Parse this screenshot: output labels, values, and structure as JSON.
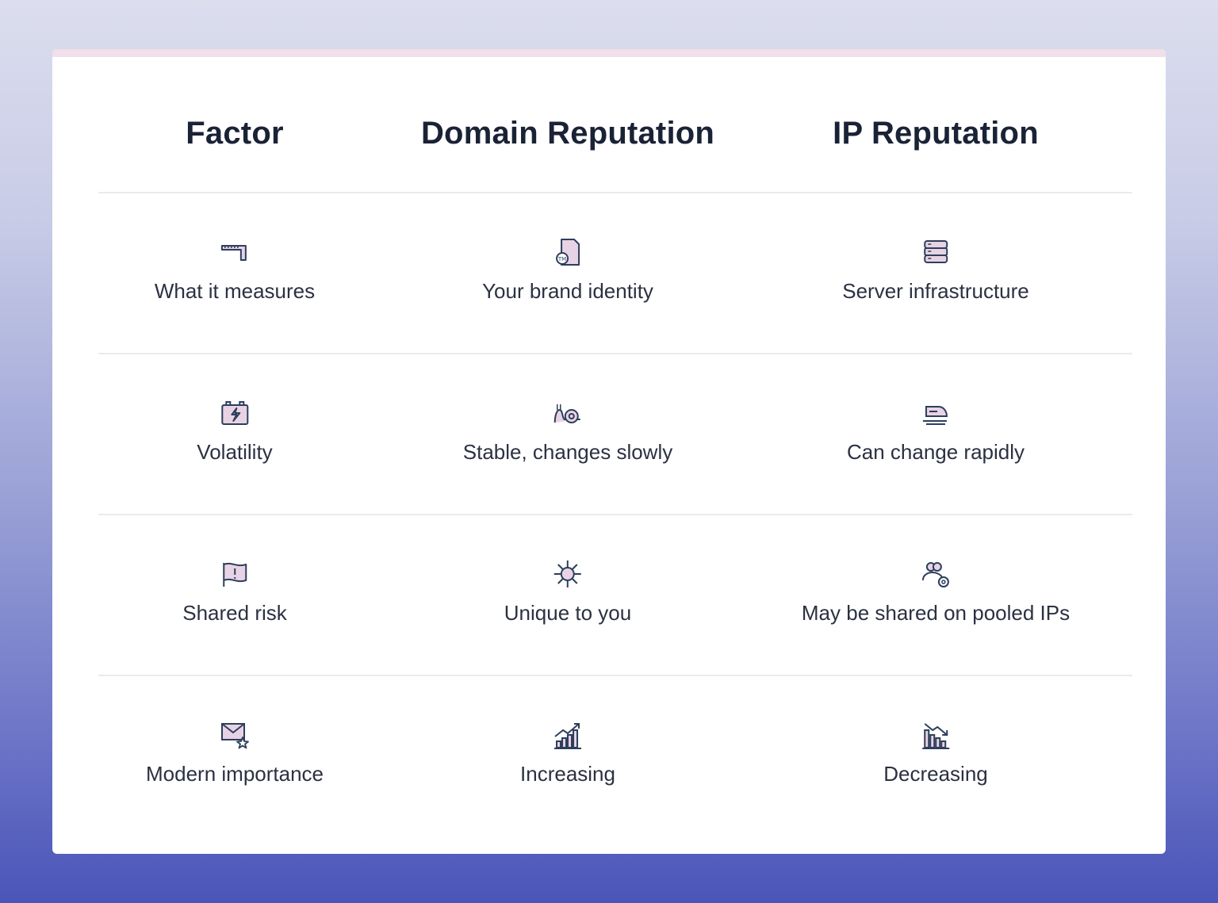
{
  "headers": [
    "Factor",
    "Domain Reputation",
    "IP Reputation"
  ],
  "rows": [
    {
      "cells": [
        {
          "icon": "ruler-icon",
          "text": "What it measures"
        },
        {
          "icon": "trademark-document-icon",
          "text": "Your brand identity"
        },
        {
          "icon": "server-icon",
          "text": "Server infrastructure"
        }
      ]
    },
    {
      "cells": [
        {
          "icon": "battery-lightning-icon",
          "text": "Volatility"
        },
        {
          "icon": "snail-icon",
          "text": "Stable, changes slowly"
        },
        {
          "icon": "fast-train-icon",
          "text": "Can change rapidly"
        }
      ]
    },
    {
      "cells": [
        {
          "icon": "warning-flag-icon",
          "text": "Shared risk"
        },
        {
          "icon": "snowflake-icon",
          "text": "Unique to you"
        },
        {
          "icon": "users-at-icon",
          "text": "May be shared on pooled IPs"
        }
      ]
    },
    {
      "cells": [
        {
          "icon": "mail-star-icon",
          "text": "Modern importance"
        },
        {
          "icon": "chart-increasing-icon",
          "text": "Increasing"
        },
        {
          "icon": "chart-decreasing-icon",
          "text": "Decreasing"
        }
      ]
    }
  ],
  "colors": {
    "icon_stroke": "#2d3e5c",
    "icon_fill": "#e8d3e4",
    "accent_strip": "#f1dfea",
    "text": "#2b3142"
  }
}
